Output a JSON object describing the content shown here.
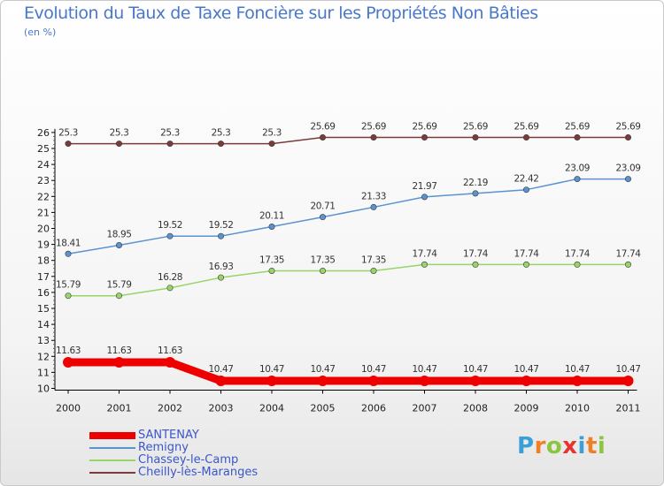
{
  "title": "Evolution du Taux de Taxe Foncière sur les Propriétés Non Bâties",
  "subtitle": "(en %)",
  "logo": {
    "letters": [
      "P",
      "r",
      "o",
      "x",
      "i",
      "t",
      "i"
    ],
    "colors": [
      "#3aa1d8",
      "#f07f26",
      "#8cc63e",
      "#e8342c",
      "#3aa1d8",
      "#f07f26",
      "#8cc63e"
    ]
  },
  "chart_data": {
    "type": "line",
    "x": [
      "2000",
      "2001",
      "2002",
      "2003",
      "2004",
      "2005",
      "2006",
      "2007",
      "2008",
      "2009",
      "2010",
      "2011"
    ],
    "ylim": [
      10,
      26
    ],
    "yticks": [
      "10",
      "11",
      "12",
      "13",
      "14",
      "15",
      "16",
      "17",
      "18",
      "19",
      "20",
      "21",
      "22",
      "23",
      "24",
      "25",
      "26"
    ],
    "grid": false,
    "legend_position": "bottom-left",
    "series": [
      {
        "name": "SANTENAY",
        "color": "#ee0000",
        "width": 9,
        "values": [
          11.63,
          11.63,
          11.63,
          10.47,
          10.47,
          10.47,
          10.47,
          10.47,
          10.47,
          10.47,
          10.47,
          10.47
        ],
        "labels": [
          "11.63",
          "11.63",
          "11.63",
          "10.47",
          "10.47",
          "10.47",
          "10.47",
          "10.47",
          "10.47",
          "10.47",
          "10.47",
          "10.47"
        ]
      },
      {
        "name": "Remigny",
        "color": "#5a93d0",
        "width": 1.5,
        "values": [
          18.41,
          18.95,
          19.52,
          19.52,
          20.11,
          20.71,
          21.33,
          21.97,
          22.19,
          22.42,
          23.09,
          23.09
        ],
        "labels": [
          "18.41",
          "18.95",
          "19.52",
          "19.52",
          "20.11",
          "20.71",
          "21.33",
          "21.97",
          "22.19",
          "22.42",
          "23.09",
          "23.09"
        ]
      },
      {
        "name": "Chassey-le-Camp",
        "color": "#98d468",
        "width": 1.5,
        "values": [
          15.79,
          15.79,
          16.28,
          16.93,
          17.35,
          17.35,
          17.35,
          17.74,
          17.74,
          17.74,
          17.74,
          17.74
        ],
        "labels": [
          "15.79",
          "15.79",
          "16.28",
          "16.93",
          "17.35",
          "17.35",
          "17.35",
          "17.74",
          "17.74",
          "17.74",
          "17.74",
          "17.74"
        ]
      },
      {
        "name": "Cheilly-lès-Maranges",
        "color": "#7a3b3b",
        "width": 1.5,
        "values": [
          25.3,
          25.3,
          25.3,
          25.3,
          25.3,
          25.69,
          25.69,
          25.69,
          25.69,
          25.69,
          25.69,
          25.69
        ],
        "labels": [
          "25.3",
          "25.3",
          "25.3",
          "25.3",
          "25.3",
          "25.69",
          "25.69",
          "25.69",
          "25.69",
          "25.69",
          "25.69",
          "25.69"
        ]
      }
    ]
  }
}
